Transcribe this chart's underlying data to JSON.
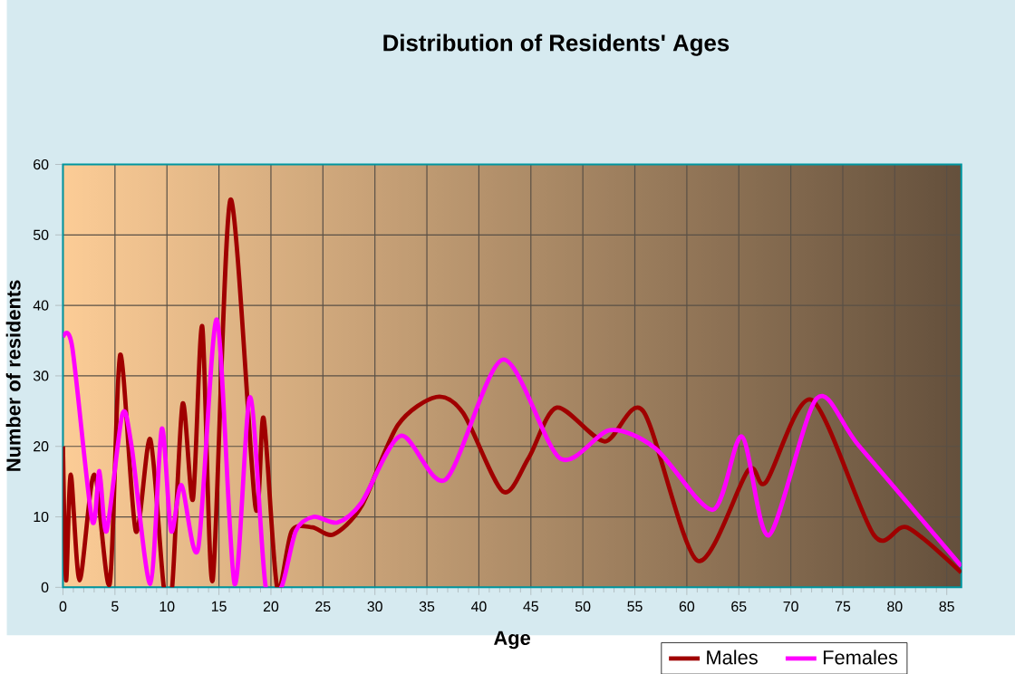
{
  "chart_data": {
    "type": "line",
    "title": "Distribution of Residents' Ages",
    "xlabel": "Age",
    "ylabel": "Number of residents",
    "xlim": [
      0,
      86.4
    ],
    "ylim": [
      0,
      60
    ],
    "xticks": [
      0,
      5,
      10,
      15,
      20,
      25,
      30,
      35,
      40,
      45,
      50,
      55,
      60,
      65,
      70,
      75,
      80,
      85
    ],
    "yticks": [
      0,
      10,
      20,
      30,
      40,
      50,
      60
    ],
    "grid": true,
    "legend": "bottom right",
    "marker": "none",
    "line_style": "solid",
    "series": [
      {
        "name": "Males",
        "color": "#a00000",
        "x": [
          0,
          0.3,
          0.75,
          1.6,
          3,
          4.5,
          5.5,
          7,
          8.4,
          9.7,
          10.5,
          11.5,
          12.5,
          13.4,
          14.4,
          16.1,
          18.5,
          19.3,
          20.6,
          22,
          24,
          26,
          28.7,
          32.2,
          35.9,
          38.5,
          42.3,
          44.8,
          47.5,
          52.1,
          55.8,
          61,
          65.9,
          67.6,
          72,
          78,
          81.2,
          86.4
        ],
        "values": [
          20,
          1,
          16,
          1,
          16,
          0.5,
          33,
          8,
          21,
          0,
          0,
          26,
          12.5,
          37,
          1,
          55,
          11.5,
          24,
          0,
          8,
          8.5,
          7.5,
          11.5,
          23,
          27,
          24.7,
          13.6,
          18.4,
          25.5,
          20.7,
          25,
          3.8,
          16.6,
          14.9,
          26.6,
          7.4,
          8.5,
          2.1
        ]
      },
      {
        "name": "Females",
        "color": "#ff00ff",
        "x": [
          0,
          0.9,
          2.8,
          3.5,
          4.2,
          5.7,
          6.6,
          8.4,
          9.5,
          10.4,
          11.4,
          13,
          14.8,
          16.5,
          18,
          19.5,
          21,
          22.4,
          24.1,
          26.4,
          28.7,
          32.5,
          36.8,
          42.3,
          47.8,
          52.6,
          57,
          62.5,
          65.3,
          67.9,
          72.5,
          76.6,
          86.4
        ],
        "values": [
          35.5,
          34,
          9.5,
          16.5,
          8,
          24.5,
          20,
          0.5,
          22.5,
          8,
          14.5,
          5.5,
          38,
          0.5,
          27,
          0,
          0,
          8,
          10,
          9.2,
          12,
          21.5,
          15.3,
          32.3,
          18.3,
          22.3,
          19.7,
          11,
          21.4,
          7.4,
          26.8,
          20,
          3
        ]
      }
    ]
  }
}
